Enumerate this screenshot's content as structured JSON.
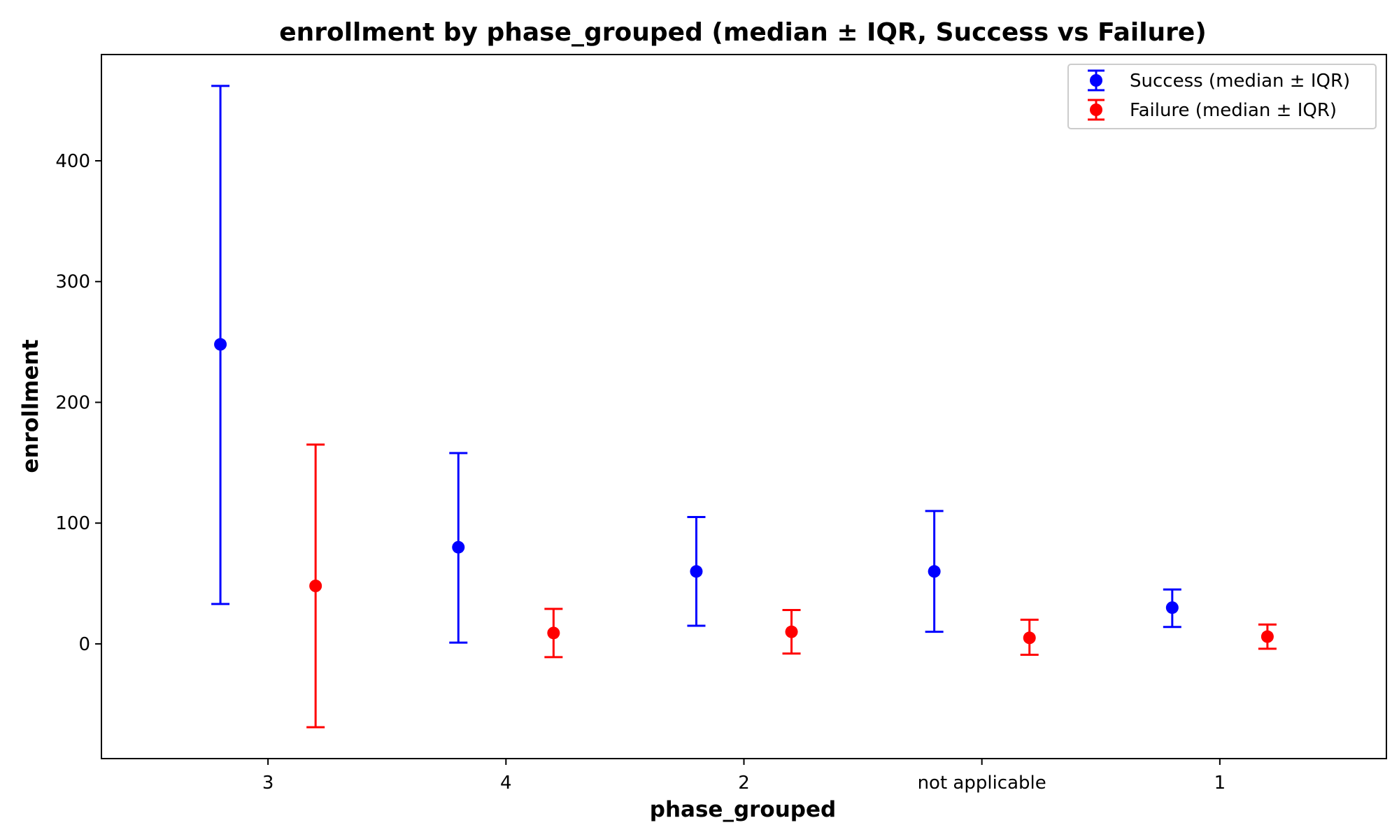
{
  "chart_data": {
    "type": "errorbar",
    "title": "enrollment by phase_grouped (median ± IQR, Success vs Failure)",
    "xlabel": "phase_grouped",
    "ylabel": "enrollment",
    "categories": [
      "3",
      "4",
      "2",
      "not applicable",
      "1"
    ],
    "ylim": [
      -95,
      488
    ],
    "yticks": [
      0,
      100,
      200,
      300,
      400
    ],
    "grid": false,
    "legend_position": "top-right",
    "series": [
      {
        "name": "Success (median ± IQR)",
        "color": "#0000ff",
        "offset": -0.2,
        "median": [
          248,
          80,
          60,
          60,
          30
        ],
        "lower": [
          33,
          1,
          15,
          10,
          14
        ],
        "upper": [
          462,
          158,
          105,
          110,
          45
        ]
      },
      {
        "name": "Failure (median ± IQR)",
        "color": "#ff0000",
        "offset": 0.2,
        "median": [
          48,
          9,
          10,
          5,
          6
        ],
        "lower": [
          -69,
          -11,
          -8,
          -9,
          -4
        ],
        "upper": [
          165,
          29,
          28,
          20,
          16
        ]
      }
    ]
  }
}
